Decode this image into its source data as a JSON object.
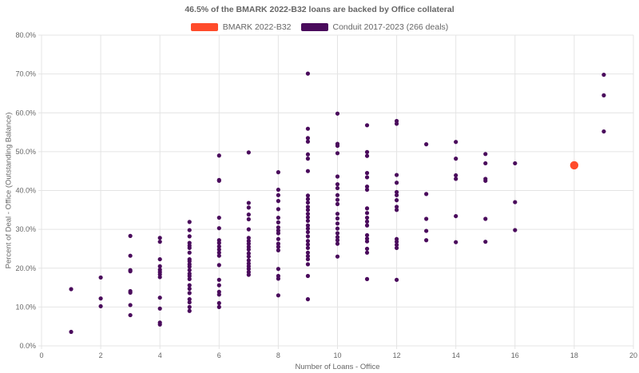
{
  "chart_data": {
    "type": "scatter",
    "title": "46.5% of the BMARK 2022-B32 loans are backed by Office collateral",
    "xlabel": "Number of Loans - Office",
    "ylabel": "Percent of Deal - Office (Outstanding Balance)",
    "xlim": [
      0,
      20
    ],
    "ylim": [
      0,
      80
    ],
    "x_ticks": [
      "0",
      "2",
      "4",
      "6",
      "8",
      "10",
      "12",
      "14",
      "16",
      "18",
      "20"
    ],
    "y_ticks": [
      "0.0%",
      "10.0%",
      "20.0%",
      "30.0%",
      "40.0%",
      "50.0%",
      "60.0%",
      "70.0%",
      "80.0%"
    ],
    "grid": true,
    "legend_position": "top",
    "series": [
      {
        "name": "BMARK 2022-B32",
        "color": "#FF4B2B",
        "points": [
          [
            18,
            46.5
          ]
        ]
      },
      {
        "name": "Conduit 2017-2023 (266 deals)",
        "color": "#4A0B5C",
        "points": [
          [
            1,
            14.6
          ],
          [
            1,
            3.6
          ],
          [
            2,
            17.6
          ],
          [
            2,
            12.2
          ],
          [
            2,
            10.2
          ],
          [
            3,
            28.3
          ],
          [
            3,
            23.2
          ],
          [
            3,
            19.5
          ],
          [
            3,
            19.2
          ],
          [
            3,
            14.1
          ],
          [
            3,
            13.7
          ],
          [
            3,
            10.5
          ],
          [
            3,
            7.9
          ],
          [
            4,
            27.8
          ],
          [
            4,
            26.8
          ],
          [
            4,
            22.3
          ],
          [
            4,
            20.5
          ],
          [
            4,
            19.6
          ],
          [
            4,
            19.0
          ],
          [
            4,
            18.4
          ],
          [
            4,
            17.7
          ],
          [
            4,
            12.4
          ],
          [
            4,
            9.6
          ],
          [
            4,
            6.0
          ],
          [
            4,
            5.5
          ],
          [
            5,
            31.9
          ],
          [
            5,
            29.8
          ],
          [
            5,
            28.2
          ],
          [
            5,
            26.5
          ],
          [
            5,
            25.8
          ],
          [
            5,
            25.2
          ],
          [
            5,
            24.0
          ],
          [
            5,
            22.3
          ],
          [
            5,
            21.8
          ],
          [
            5,
            21.0
          ],
          [
            5,
            20.4
          ],
          [
            5,
            19.5
          ],
          [
            5,
            18.6
          ],
          [
            5,
            18.0
          ],
          [
            5,
            17.2
          ],
          [
            5,
            15.6
          ],
          [
            5,
            14.7
          ],
          [
            5,
            13.6
          ],
          [
            5,
            12.0
          ],
          [
            5,
            11.2
          ],
          [
            5,
            10.0
          ],
          [
            5,
            9.0
          ],
          [
            6,
            49.0
          ],
          [
            6,
            42.7
          ],
          [
            6,
            42.5
          ],
          [
            6,
            33.0
          ],
          [
            6,
            30.3
          ],
          [
            6,
            27.2
          ],
          [
            6,
            26.5
          ],
          [
            6,
            25.6
          ],
          [
            6,
            24.8
          ],
          [
            6,
            24.0
          ],
          [
            6,
            23.2
          ],
          [
            6,
            20.8
          ],
          [
            6,
            17.0
          ],
          [
            6,
            15.6
          ],
          [
            6,
            13.9
          ],
          [
            6,
            13.2
          ],
          [
            6,
            11.0
          ],
          [
            6,
            10.0
          ],
          [
            7,
            49.8
          ],
          [
            7,
            36.8
          ],
          [
            7,
            35.6
          ],
          [
            7,
            33.8
          ],
          [
            7,
            32.6
          ],
          [
            7,
            30.0
          ],
          [
            7,
            27.8
          ],
          [
            7,
            27.0
          ],
          [
            7,
            26.3
          ],
          [
            7,
            25.5
          ],
          [
            7,
            24.8
          ],
          [
            7,
            23.8
          ],
          [
            7,
            23.0
          ],
          [
            7,
            22.0
          ],
          [
            7,
            21.2
          ],
          [
            7,
            20.5
          ],
          [
            7,
            19.8
          ],
          [
            7,
            19.0
          ],
          [
            7,
            18.3
          ],
          [
            8,
            44.7
          ],
          [
            8,
            40.2
          ],
          [
            8,
            38.8
          ],
          [
            8,
            37.3
          ],
          [
            8,
            35.2
          ],
          [
            8,
            33.0
          ],
          [
            8,
            31.8
          ],
          [
            8,
            30.5
          ],
          [
            8,
            29.7
          ],
          [
            8,
            29.0
          ],
          [
            8,
            27.5
          ],
          [
            8,
            26.3
          ],
          [
            8,
            25.5
          ],
          [
            8,
            24.6
          ],
          [
            8,
            19.8
          ],
          [
            8,
            18.0
          ],
          [
            8,
            17.3
          ],
          [
            8,
            13.0
          ],
          [
            9,
            70.1
          ],
          [
            9,
            55.9
          ],
          [
            9,
            53.5
          ],
          [
            9,
            52.6
          ],
          [
            9,
            49.3
          ],
          [
            9,
            48.2
          ],
          [
            9,
            45.0
          ],
          [
            9,
            38.7
          ],
          [
            9,
            37.8
          ],
          [
            9,
            36.9
          ],
          [
            9,
            35.8
          ],
          [
            9,
            35.0
          ],
          [
            9,
            34.0
          ],
          [
            9,
            33.1
          ],
          [
            9,
            32.2
          ],
          [
            9,
            31.0
          ],
          [
            9,
            30.2
          ],
          [
            9,
            29.3
          ],
          [
            9,
            28.2
          ],
          [
            9,
            27.0
          ],
          [
            9,
            26.1
          ],
          [
            9,
            25.2
          ],
          [
            9,
            24.0
          ],
          [
            9,
            23.1
          ],
          [
            9,
            22.3
          ],
          [
            9,
            21.0
          ],
          [
            9,
            18.0
          ],
          [
            9,
            12.0
          ],
          [
            10,
            59.8
          ],
          [
            10,
            52.0
          ],
          [
            10,
            51.5
          ],
          [
            10,
            49.6
          ],
          [
            10,
            43.6
          ],
          [
            10,
            41.6
          ],
          [
            10,
            40.6
          ],
          [
            10,
            38.8
          ],
          [
            10,
            37.6
          ],
          [
            10,
            36.5
          ],
          [
            10,
            34.0
          ],
          [
            10,
            32.8
          ],
          [
            10,
            31.5
          ],
          [
            10,
            30.2
          ],
          [
            10,
            29.0
          ],
          [
            10,
            28.0
          ],
          [
            10,
            27.2
          ],
          [
            10,
            26.3
          ],
          [
            10,
            23.0
          ],
          [
            11,
            56.8
          ],
          [
            11,
            49.9
          ],
          [
            11,
            48.9
          ],
          [
            11,
            44.5
          ],
          [
            11,
            43.4
          ],
          [
            11,
            41.0
          ],
          [
            11,
            40.2
          ],
          [
            11,
            35.4
          ],
          [
            11,
            34.2
          ],
          [
            11,
            33.0
          ],
          [
            11,
            32.0
          ],
          [
            11,
            31.0
          ],
          [
            11,
            28.5
          ],
          [
            11,
            27.6
          ],
          [
            11,
            26.9
          ],
          [
            11,
            25.0
          ],
          [
            11,
            24.0
          ],
          [
            11,
            17.2
          ],
          [
            12,
            57.9
          ],
          [
            12,
            57.2
          ],
          [
            12,
            44.0
          ],
          [
            12,
            42.0
          ],
          [
            12,
            39.6
          ],
          [
            12,
            38.8
          ],
          [
            12,
            37.5
          ],
          [
            12,
            35.8
          ],
          [
            12,
            35.0
          ],
          [
            12,
            27.5
          ],
          [
            12,
            26.8
          ],
          [
            12,
            26.0
          ],
          [
            12,
            25.2
          ],
          [
            12,
            17.0
          ],
          [
            13,
            51.9
          ],
          [
            13,
            39.1
          ],
          [
            13,
            32.7
          ],
          [
            13,
            29.6
          ],
          [
            13,
            27.2
          ],
          [
            14,
            52.5
          ],
          [
            14,
            48.2
          ],
          [
            14,
            43.9
          ],
          [
            14,
            43.0
          ],
          [
            14,
            33.4
          ],
          [
            14,
            26.7
          ],
          [
            15,
            49.4
          ],
          [
            15,
            47.0
          ],
          [
            15,
            43.0
          ],
          [
            15,
            42.5
          ],
          [
            15,
            32.7
          ],
          [
            15,
            26.8
          ],
          [
            16,
            47.0
          ],
          [
            16,
            37.0
          ],
          [
            16,
            29.8
          ],
          [
            19,
            69.8
          ],
          [
            19,
            64.5
          ],
          [
            19,
            55.2
          ]
        ]
      }
    ]
  }
}
